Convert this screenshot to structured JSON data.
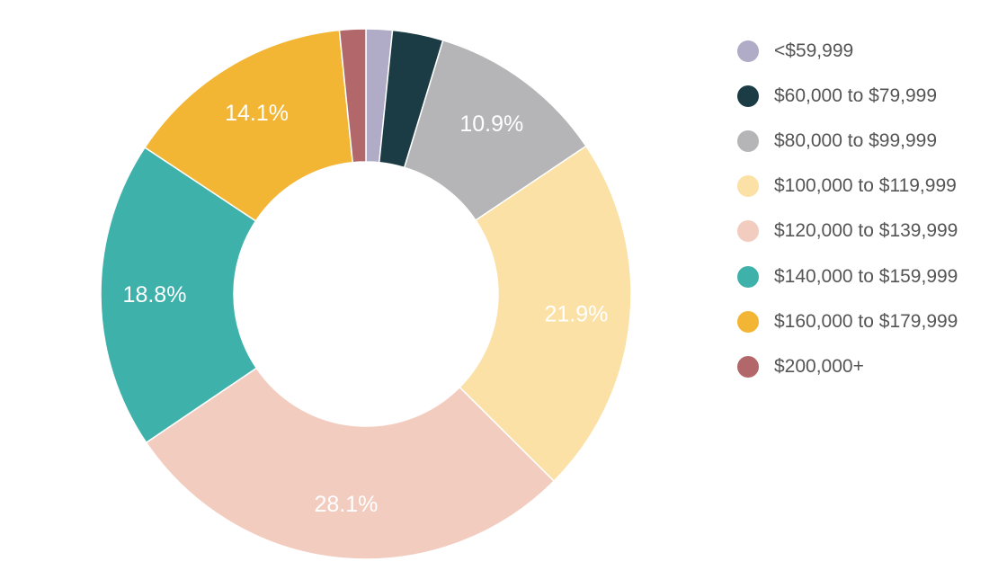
{
  "chart_data": {
    "type": "pie",
    "subtype": "donut",
    "title": "",
    "categories": [
      "<$59,999",
      "$60,000 to $79,999",
      "$80,000 to $99,999",
      "$100,000 to $119,999",
      "$120,000 to $139,999",
      "$140,000 to $159,999",
      "$160,000 to $179,999",
      "$200,000+"
    ],
    "values": [
      1.6,
      3.1,
      10.9,
      21.9,
      28.1,
      18.8,
      14.1,
      1.6
    ],
    "labels": [
      "",
      "",
      "10.9%",
      "21.9%",
      "28.1%",
      "18.8%",
      "14.1%",
      ""
    ],
    "colors": [
      "#b0abc7",
      "#1b3c44",
      "#b5b5b7",
      "#fbe1a6",
      "#f2ccbf",
      "#3fb1ab",
      "#f2b634",
      "#b2686a"
    ],
    "legend_position": "right"
  }
}
